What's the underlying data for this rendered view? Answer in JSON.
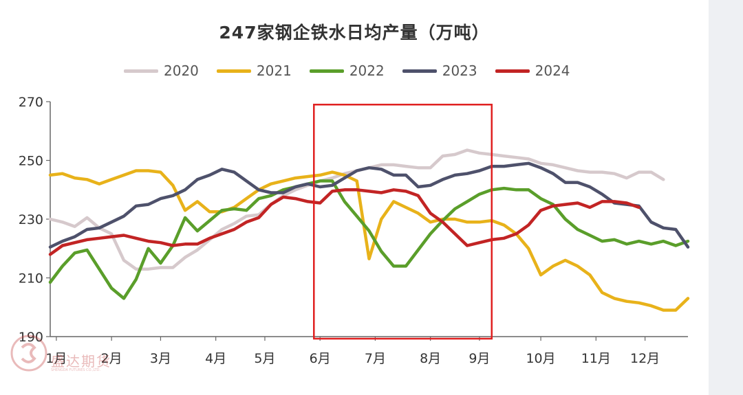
{
  "title": "247家钢企铁水日均产量（万吨）",
  "watermark": {
    "name": "盛达期货",
    "sub": "SHENGDA FUTURES CO.,LTD."
  },
  "chart_data": {
    "type": "line",
    "title": "247家钢企铁水日均产量（万吨）",
    "ylim": [
      190,
      270
    ],
    "yticks": [
      190,
      210,
      230,
      250,
      270
    ],
    "xlim": [
      1,
      53
    ],
    "x_unit": "week",
    "month_ticks": [
      {
        "label": "1月",
        "week": 1.5
      },
      {
        "label": "2月",
        "week": 6
      },
      {
        "label": "3月",
        "week": 10
      },
      {
        "label": "4月",
        "week": 14.5
      },
      {
        "label": "5月",
        "week": 18.5
      },
      {
        "label": "6月",
        "week": 23
      },
      {
        "label": "7月",
        "week": 27.5
      },
      {
        "label": "8月",
        "week": 32
      },
      {
        "label": "9月",
        "week": 36
      },
      {
        "label": "10月",
        "week": 41
      },
      {
        "label": "11月",
        "week": 45.5
      },
      {
        "label": "12月",
        "week": 49.5
      }
    ],
    "grid": false,
    "legend_position": "top",
    "highlight_box": {
      "x_from": 22.5,
      "x_to": 37,
      "y_from": 190,
      "y_to": 269,
      "color": "#e02020"
    },
    "series": [
      {
        "name": "2020",
        "color": "#d6c9cc",
        "x": [
          1,
          2,
          3,
          4,
          5,
          6,
          7,
          8,
          9,
          10,
          11,
          12,
          13,
          14,
          15,
          16,
          17,
          18,
          19,
          20,
          21,
          22,
          23,
          24,
          25,
          26,
          27,
          28,
          29,
          30,
          31,
          32,
          33,
          34,
          35,
          36,
          37,
          38,
          39,
          40,
          41,
          42,
          43,
          44,
          45,
          46,
          47,
          48,
          49,
          50,
          51
        ],
        "values": [
          230,
          229,
          227.5,
          230.5,
          227,
          225,
          216,
          213,
          213,
          213.5,
          213.5,
          217,
          219.5,
          223,
          226.5,
          228.5,
          231,
          231.5,
          235,
          238,
          240,
          241.5,
          243,
          244,
          245.5,
          246.5,
          247.5,
          248.5,
          248.5,
          248,
          247.5,
          247.5,
          251.5,
          252,
          253.5,
          252.5,
          252,
          251.5,
          251,
          250.5,
          249,
          248.5,
          247.5,
          246.5,
          246,
          246,
          245.5,
          244,
          246,
          246,
          243.5
        ]
      },
      {
        "name": "2021",
        "color": "#e8b21a",
        "x": [
          1,
          2,
          3,
          4,
          5,
          6,
          7,
          8,
          9,
          10,
          11,
          12,
          13,
          14,
          15,
          16,
          17,
          18,
          19,
          20,
          21,
          22,
          23,
          24,
          25,
          26,
          27,
          28,
          29,
          30,
          31,
          32,
          33,
          34,
          35,
          36,
          37,
          38,
          39,
          40,
          41,
          42,
          43,
          44,
          45,
          46,
          47,
          48,
          49,
          50,
          51,
          52,
          53
        ],
        "values": [
          245,
          245.5,
          244,
          243.5,
          242,
          243.5,
          245,
          246.5,
          246.5,
          246,
          241.5,
          233,
          236,
          232.5,
          232.5,
          234,
          237,
          240,
          242,
          243,
          244,
          244.5,
          245,
          246,
          245,
          243,
          216.5,
          230,
          236,
          234,
          232,
          229,
          230,
          230,
          229,
          229,
          229.5,
          228,
          225,
          220,
          211,
          214,
          216,
          214,
          211,
          205,
          203,
          202,
          201.5,
          200.5,
          199,
          199,
          203
        ]
      },
      {
        "name": "2022",
        "color": "#5a9e2a",
        "x": [
          1,
          2,
          3,
          4,
          5,
          6,
          7,
          8,
          9,
          10,
          11,
          12,
          13,
          14,
          15,
          16,
          17,
          18,
          19,
          20,
          21,
          22,
          23,
          24,
          25,
          26,
          27,
          28,
          29,
          30,
          31,
          32,
          33,
          34,
          35,
          36,
          37,
          38,
          39,
          40,
          41,
          42,
          43,
          44,
          45,
          46,
          47,
          48,
          49,
          50,
          51,
          52,
          53
        ],
        "values": [
          208.5,
          214,
          218.5,
          219.5,
          213,
          206.5,
          203,
          209.5,
          220,
          215,
          221,
          230.5,
          226,
          229.5,
          233,
          233.5,
          233,
          237,
          238,
          240,
          241,
          242,
          243,
          243,
          236,
          231,
          226,
          219,
          214,
          214,
          219.5,
          225,
          229.5,
          233.5,
          236,
          238.5,
          240,
          240.5,
          240,
          240,
          237,
          235,
          230,
          226.5,
          224.5,
          222.5,
          223,
          221.5,
          222.5,
          221.5,
          222.5,
          221,
          222.5
        ]
      },
      {
        "name": "2023",
        "color": "#4e516b",
        "x": [
          1,
          2,
          3,
          4,
          5,
          6,
          7,
          8,
          9,
          10,
          11,
          12,
          13,
          14,
          15,
          16,
          17,
          18,
          19,
          20,
          21,
          22,
          23,
          24,
          25,
          26,
          27,
          28,
          29,
          30,
          31,
          32,
          33,
          34,
          35,
          36,
          37,
          38,
          39,
          40,
          41,
          42,
          43,
          44,
          45,
          46,
          47,
          48,
          49,
          50,
          51,
          52,
          53
        ],
        "values": [
          220.5,
          222.5,
          224,
          226.5,
          227,
          229,
          231,
          234.5,
          235,
          237,
          238,
          240,
          243.5,
          245,
          247,
          246,
          243,
          240,
          239,
          239,
          241,
          242,
          241,
          241.5,
          244,
          246.5,
          247.5,
          247,
          245,
          245,
          241,
          241.5,
          243.5,
          245,
          245.5,
          246.5,
          248,
          248,
          248.5,
          249,
          247.5,
          245.5,
          242.5,
          242.5,
          241,
          238.5,
          235.5,
          235,
          234.5,
          229,
          227,
          226.5,
          220.5
        ]
      },
      {
        "name": "2024",
        "color": "#c22424",
        "x": [
          1,
          2,
          3,
          4,
          5,
          6,
          7,
          8,
          9,
          10,
          11,
          12,
          13,
          14,
          15,
          16,
          17,
          18,
          19,
          20,
          21,
          22,
          23,
          24,
          25,
          26,
          27,
          28,
          29,
          30,
          31,
          32,
          33,
          34,
          35,
          36,
          37,
          38,
          39,
          40,
          41,
          42,
          43,
          44,
          45,
          46,
          47,
          48,
          49
        ],
        "values": [
          218,
          221,
          222,
          223,
          223.5,
          224,
          224.5,
          223.5,
          222.5,
          222,
          221,
          221.5,
          221.5,
          223.5,
          225,
          226.5,
          229,
          230.5,
          235,
          237.5,
          237,
          236,
          235.5,
          239.5,
          240,
          240,
          239.5,
          239,
          240,
          239.5,
          238,
          232,
          229,
          225,
          221,
          222,
          223,
          223.5,
          225,
          228,
          233,
          234.5,
          235,
          235.5,
          234,
          236,
          236,
          235.5,
          234
        ]
      }
    ]
  }
}
